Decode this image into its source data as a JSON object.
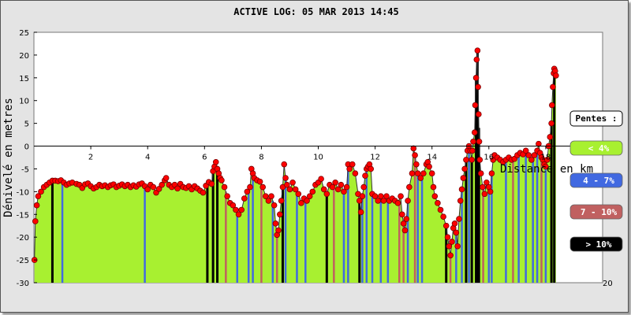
{
  "chart_data": {
    "type": "area",
    "title": "ACTIVE LOG: 05 MAR 2013 14:45",
    "xlabel": "Distance en km",
    "ylabel": "Dénivelé en metres",
    "xlim": [
      0,
      20
    ],
    "ylim": [
      -30,
      25
    ],
    "x_ticks": [
      2,
      4,
      6,
      8,
      10,
      12,
      14,
      16,
      18
    ],
    "y_ticks": [
      25,
      20,
      15,
      10,
      5,
      0,
      -5,
      -10,
      -15,
      -20,
      -25,
      -30
    ],
    "x_tick_labels": [
      "2",
      "4",
      "6",
      "8",
      "10",
      "12",
      "14",
      "16",
      "18"
    ],
    "y_tick_labels": [
      "25",
      "20",
      "15",
      "10",
      "5",
      "0",
      "-5",
      "-10",
      "-15",
      "-20",
      "-25",
      "-30"
    ],
    "x_end_label": "20",
    "grid": false,
    "legend_position": "right",
    "legend": {
      "title": "Pentes :",
      "items": [
        {
          "label": "< 4%",
          "color": "#a8f030",
          "text_color": "#ffffff"
        },
        {
          "label": "4 - 7%",
          "color": "#4169e1",
          "text_color": "#ffffff"
        },
        {
          "label": "7 - 10%",
          "color": "#c06060",
          "text_color": "#ffffff"
        },
        {
          "label": "> 10%",
          "color": "#000000",
          "text_color": "#ffffff"
        }
      ]
    },
    "colors": {
      "fill": "#a8f030",
      "point": "#ff0000",
      "slope_4_7": "#4169e1",
      "slope_7_10": "#c06060",
      "slope_gt10": "#000000"
    },
    "profile": [
      {
        "x": 0.02,
        "y": -25
      },
      {
        "x": 0.05,
        "y": -16.5
      },
      {
        "x": 0.1,
        "y": -13
      },
      {
        "x": 0.15,
        "y": -11
      },
      {
        "x": 0.25,
        "y": -10
      },
      {
        "x": 0.35,
        "y": -9
      },
      {
        "x": 0.45,
        "y": -8.5
      },
      {
        "x": 0.55,
        "y": -8
      },
      {
        "x": 0.65,
        "y": -7.6
      },
      {
        "x": 0.75,
        "y": -7.6
      },
      {
        "x": 0.85,
        "y": -7.7
      },
      {
        "x": 0.95,
        "y": -7.5
      },
      {
        "x": 1.05,
        "y": -8
      },
      {
        "x": 1.15,
        "y": -8.5
      },
      {
        "x": 1.25,
        "y": -8.2
      },
      {
        "x": 1.35,
        "y": -8
      },
      {
        "x": 1.5,
        "y": -8.3
      },
      {
        "x": 1.6,
        "y": -8.5
      },
      {
        "x": 1.7,
        "y": -9.2
      },
      {
        "x": 1.8,
        "y": -8.4
      },
      {
        "x": 1.9,
        "y": -8.2
      },
      {
        "x": 2.0,
        "y": -8.8
      },
      {
        "x": 2.1,
        "y": -9.3
      },
      {
        "x": 2.2,
        "y": -9.0
      },
      {
        "x": 2.3,
        "y": -8.5
      },
      {
        "x": 2.4,
        "y": -8.8
      },
      {
        "x": 2.5,
        "y": -8.6
      },
      {
        "x": 2.6,
        "y": -9.0
      },
      {
        "x": 2.7,
        "y": -8.6
      },
      {
        "x": 2.8,
        "y": -8.4
      },
      {
        "x": 2.9,
        "y": -9.0
      },
      {
        "x": 3.0,
        "y": -8.7
      },
      {
        "x": 3.1,
        "y": -8.4
      },
      {
        "x": 3.2,
        "y": -8.8
      },
      {
        "x": 3.3,
        "y": -8.5
      },
      {
        "x": 3.4,
        "y": -9.0
      },
      {
        "x": 3.5,
        "y": -8.6
      },
      {
        "x": 3.6,
        "y": -8.9
      },
      {
        "x": 3.7,
        "y": -8.4
      },
      {
        "x": 3.8,
        "y": -8.2
      },
      {
        "x": 3.9,
        "y": -8.8
      },
      {
        "x": 4.0,
        "y": -9.5
      },
      {
        "x": 4.1,
        "y": -8.5
      },
      {
        "x": 4.2,
        "y": -9.0
      },
      {
        "x": 4.3,
        "y": -10.2
      },
      {
        "x": 4.4,
        "y": -9.4
      },
      {
        "x": 4.5,
        "y": -8.5
      },
      {
        "x": 4.6,
        "y": -7.5
      },
      {
        "x": 4.65,
        "y": -7.0
      },
      {
        "x": 4.75,
        "y": -8.5
      },
      {
        "x": 4.85,
        "y": -9.0
      },
      {
        "x": 4.95,
        "y": -8.5
      },
      {
        "x": 5.05,
        "y": -9.3
      },
      {
        "x": 5.15,
        "y": -8.3
      },
      {
        "x": 5.25,
        "y": -9.0
      },
      {
        "x": 5.35,
        "y": -9.2
      },
      {
        "x": 5.45,
        "y": -8.8
      },
      {
        "x": 5.55,
        "y": -9.5
      },
      {
        "x": 5.65,
        "y": -8.8
      },
      {
        "x": 5.75,
        "y": -9.3
      },
      {
        "x": 5.85,
        "y": -9.8
      },
      {
        "x": 5.95,
        "y": -10.2
      },
      {
        "x": 6.05,
        "y": -8.7
      },
      {
        "x": 6.15,
        "y": -7.9
      },
      {
        "x": 6.25,
        "y": -8.3
      },
      {
        "x": 6.3,
        "y": -5.5
      },
      {
        "x": 6.35,
        "y": -4.5
      },
      {
        "x": 6.4,
        "y": -3.5
      },
      {
        "x": 6.45,
        "y": -5.0
      },
      {
        "x": 6.5,
        "y": -6.0
      },
      {
        "x": 6.55,
        "y": -7.0
      },
      {
        "x": 6.6,
        "y": -7.5
      },
      {
        "x": 6.7,
        "y": -9.0
      },
      {
        "x": 6.8,
        "y": -11.0
      },
      {
        "x": 6.9,
        "y": -12.5
      },
      {
        "x": 7.0,
        "y": -13.0
      },
      {
        "x": 7.1,
        "y": -14.0
      },
      {
        "x": 7.2,
        "y": -15.0
      },
      {
        "x": 7.3,
        "y": -14.0
      },
      {
        "x": 7.4,
        "y": -11.5
      },
      {
        "x": 7.5,
        "y": -10.0
      },
      {
        "x": 7.6,
        "y": -9.0
      },
      {
        "x": 7.65,
        "y": -5.0
      },
      {
        "x": 7.7,
        "y": -6.0
      },
      {
        "x": 7.75,
        "y": -7.0
      },
      {
        "x": 7.85,
        "y": -7.5
      },
      {
        "x": 7.95,
        "y": -7.8
      },
      {
        "x": 8.05,
        "y": -9.0
      },
      {
        "x": 8.15,
        "y": -11.0
      },
      {
        "x": 8.25,
        "y": -12.0
      },
      {
        "x": 8.35,
        "y": -11.0
      },
      {
        "x": 8.45,
        "y": -13.0
      },
      {
        "x": 8.5,
        "y": -17.0
      },
      {
        "x": 8.55,
        "y": -19.5
      },
      {
        "x": 8.6,
        "y": -18.5
      },
      {
        "x": 8.65,
        "y": -15.0
      },
      {
        "x": 8.7,
        "y": -12.0
      },
      {
        "x": 8.75,
        "y": -9.0
      },
      {
        "x": 8.8,
        "y": -4.0
      },
      {
        "x": 8.85,
        "y": -7.0
      },
      {
        "x": 8.9,
        "y": -8.5
      },
      {
        "x": 9.0,
        "y": -9.5
      },
      {
        "x": 9.1,
        "y": -8.0
      },
      {
        "x": 9.2,
        "y": -9.5
      },
      {
        "x": 9.3,
        "y": -10.5
      },
      {
        "x": 9.4,
        "y": -12.5
      },
      {
        "x": 9.5,
        "y": -11.5
      },
      {
        "x": 9.6,
        "y": -12.0
      },
      {
        "x": 9.7,
        "y": -11.0
      },
      {
        "x": 9.8,
        "y": -10.0
      },
      {
        "x": 9.9,
        "y": -8.5
      },
      {
        "x": 10.0,
        "y": -8.0
      },
      {
        "x": 10.1,
        "y": -7.2
      },
      {
        "x": 10.2,
        "y": -9.5
      },
      {
        "x": 10.3,
        "y": -10.5
      },
      {
        "x": 10.4,
        "y": -8.5
      },
      {
        "x": 10.5,
        "y": -9.0
      },
      {
        "x": 10.6,
        "y": -8.0
      },
      {
        "x": 10.7,
        "y": -9.5
      },
      {
        "x": 10.8,
        "y": -8.5
      },
      {
        "x": 10.9,
        "y": -10.0
      },
      {
        "x": 11.0,
        "y": -9.0
      },
      {
        "x": 11.05,
        "y": -4.0
      },
      {
        "x": 11.1,
        "y": -5.0
      },
      {
        "x": 11.2,
        "y": -4.0
      },
      {
        "x": 11.3,
        "y": -6.0
      },
      {
        "x": 11.4,
        "y": -10.5
      },
      {
        "x": 11.45,
        "y": -12.0
      },
      {
        "x": 11.5,
        "y": -14.5
      },
      {
        "x": 11.55,
        "y": -11.0
      },
      {
        "x": 11.6,
        "y": -9.0
      },
      {
        "x": 11.65,
        "y": -6.5
      },
      {
        "x": 11.7,
        "y": -5.0
      },
      {
        "x": 11.75,
        "y": -4.5
      },
      {
        "x": 11.8,
        "y": -4.0
      },
      {
        "x": 11.85,
        "y": -5.0
      },
      {
        "x": 11.9,
        "y": -10.5
      },
      {
        "x": 12.0,
        "y": -11.0
      },
      {
        "x": 12.1,
        "y": -12.0
      },
      {
        "x": 12.2,
        "y": -11.0
      },
      {
        "x": 12.3,
        "y": -12.0
      },
      {
        "x": 12.4,
        "y": -11.0
      },
      {
        "x": 12.5,
        "y": -12.0
      },
      {
        "x": 12.6,
        "y": -11.5
      },
      {
        "x": 12.7,
        "y": -12.0
      },
      {
        "x": 12.8,
        "y": -12.5
      },
      {
        "x": 12.9,
        "y": -11.0
      },
      {
        "x": 12.95,
        "y": -15.0
      },
      {
        "x": 13.0,
        "y": -17.0
      },
      {
        "x": 13.05,
        "y": -18.5
      },
      {
        "x": 13.1,
        "y": -16.0
      },
      {
        "x": 13.15,
        "y": -12.0
      },
      {
        "x": 13.2,
        "y": -9.0
      },
      {
        "x": 13.3,
        "y": -6.0
      },
      {
        "x": 13.35,
        "y": -0.5
      },
      {
        "x": 13.4,
        "y": -2.0
      },
      {
        "x": 13.45,
        "y": -4.0
      },
      {
        "x": 13.5,
        "y": -6.0
      },
      {
        "x": 13.6,
        "y": -7.0
      },
      {
        "x": 13.7,
        "y": -6.0
      },
      {
        "x": 13.8,
        "y": -4.0
      },
      {
        "x": 13.85,
        "y": -3.5
      },
      {
        "x": 13.9,
        "y": -4.5
      },
      {
        "x": 14.0,
        "y": -6.0
      },
      {
        "x": 14.05,
        "y": -9.0
      },
      {
        "x": 14.1,
        "y": -11.0
      },
      {
        "x": 14.2,
        "y": -12.5
      },
      {
        "x": 14.3,
        "y": -14.0
      },
      {
        "x": 14.4,
        "y": -15.5
      },
      {
        "x": 14.5,
        "y": -17.5
      },
      {
        "x": 14.55,
        "y": -20.0
      },
      {
        "x": 14.6,
        "y": -22.0
      },
      {
        "x": 14.65,
        "y": -24.0
      },
      {
        "x": 14.7,
        "y": -21.0
      },
      {
        "x": 14.75,
        "y": -18.0
      },
      {
        "x": 14.8,
        "y": -17.0
      },
      {
        "x": 14.85,
        "y": -19.0
      },
      {
        "x": 14.9,
        "y": -22.0
      },
      {
        "x": 14.95,
        "y": -16.0
      },
      {
        "x": 15.0,
        "y": -12.0
      },
      {
        "x": 15.05,
        "y": -9.5
      },
      {
        "x": 15.1,
        "y": -7.0
      },
      {
        "x": 15.15,
        "y": -5.0
      },
      {
        "x": 15.2,
        "y": -3.0
      },
      {
        "x": 15.25,
        "y": -1.0
      },
      {
        "x": 15.3,
        "y": 0.0
      },
      {
        "x": 15.35,
        "y": -1.0
      },
      {
        "x": 15.4,
        "y": -3.0
      },
      {
        "x": 15.42,
        "y": -1.0
      },
      {
        "x": 15.45,
        "y": 1.0
      },
      {
        "x": 15.5,
        "y": 3.0
      },
      {
        "x": 15.52,
        "y": 9.0
      },
      {
        "x": 15.55,
        "y": 15.0
      },
      {
        "x": 15.57,
        "y": 19.0
      },
      {
        "x": 15.6,
        "y": 21.0
      },
      {
        "x": 15.62,
        "y": 13.0
      },
      {
        "x": 15.64,
        "y": 7.0
      },
      {
        "x": 15.66,
        "y": 1.0
      },
      {
        "x": 15.68,
        "y": -3.0
      },
      {
        "x": 15.72,
        "y": -6.0
      },
      {
        "x": 15.78,
        "y": -9.0
      },
      {
        "x": 15.85,
        "y": -10.5
      },
      {
        "x": 15.92,
        "y": -8.0
      },
      {
        "x": 16.0,
        "y": -9.0
      },
      {
        "x": 16.05,
        "y": -10.0
      },
      {
        "x": 16.1,
        "y": -6.0
      },
      {
        "x": 16.15,
        "y": -3.0
      },
      {
        "x": 16.2,
        "y": -2.0
      },
      {
        "x": 16.3,
        "y": -2.5
      },
      {
        "x": 16.4,
        "y": -3.0
      },
      {
        "x": 16.5,
        "y": -3.5
      },
      {
        "x": 16.6,
        "y": -3.0
      },
      {
        "x": 16.7,
        "y": -2.5
      },
      {
        "x": 16.8,
        "y": -3.0
      },
      {
        "x": 16.9,
        "y": -2.8
      },
      {
        "x": 17.0,
        "y": -2.0
      },
      {
        "x": 17.1,
        "y": -1.5
      },
      {
        "x": 17.2,
        "y": -1.8
      },
      {
        "x": 17.3,
        "y": -1.0
      },
      {
        "x": 17.4,
        "y": -2.0
      },
      {
        "x": 17.5,
        "y": -3.0
      },
      {
        "x": 17.6,
        "y": -2.0
      },
      {
        "x": 17.7,
        "y": -1.0
      },
      {
        "x": 17.75,
        "y": 0.5
      },
      {
        "x": 17.8,
        "y": -1.5
      },
      {
        "x": 17.85,
        "y": -2.5
      },
      {
        "x": 17.9,
        "y": -3.0
      },
      {
        "x": 17.95,
        "y": -4.0
      },
      {
        "x": 18.0,
        "y": -4.5
      },
      {
        "x": 18.05,
        "y": -3.0
      },
      {
        "x": 18.1,
        "y": 0.0
      },
      {
        "x": 18.15,
        "y": 2.0
      },
      {
        "x": 18.2,
        "y": 5.0
      },
      {
        "x": 18.22,
        "y": 9.0
      },
      {
        "x": 18.25,
        "y": 13.0
      },
      {
        "x": 18.28,
        "y": 16.0
      },
      {
        "x": 18.3,
        "y": 17.0
      },
      {
        "x": 18.33,
        "y": 16.5
      },
      {
        "x": 18.36,
        "y": 15.5
      }
    ],
    "slope_bands": [
      {
        "x": 0.65,
        "class": ">10%"
      },
      {
        "x": 1.0,
        "class": "4-7%"
      },
      {
        "x": 3.9,
        "class": "4-7%"
      },
      {
        "x": 6.1,
        "class": ">10%"
      },
      {
        "x": 6.3,
        "class": ">10%"
      },
      {
        "x": 6.45,
        "class": ">10%"
      },
      {
        "x": 6.75,
        "class": "7-10%"
      },
      {
        "x": 7.15,
        "class": "4-7%"
      },
      {
        "x": 7.55,
        "class": "4-7%"
      },
      {
        "x": 7.7,
        "class": "4-7%"
      },
      {
        "x": 8.0,
        "class": "7-10%"
      },
      {
        "x": 8.4,
        "class": "4-7%"
      },
      {
        "x": 8.55,
        "class": "7-10%"
      },
      {
        "x": 8.75,
        "class": ">10%"
      },
      {
        "x": 8.85,
        "class": "4-7%"
      },
      {
        "x": 9.25,
        "class": "4-7%"
      },
      {
        "x": 9.55,
        "class": "4-7%"
      },
      {
        "x": 10.3,
        "class": ">10%"
      },
      {
        "x": 10.55,
        "class": "7-10%"
      },
      {
        "x": 10.9,
        "class": "4-7%"
      },
      {
        "x": 11.05,
        "class": "4-7%"
      },
      {
        "x": 11.45,
        "class": ">10%"
      },
      {
        "x": 11.55,
        "class": "4-7%"
      },
      {
        "x": 11.7,
        "class": "4-7%"
      },
      {
        "x": 11.9,
        "class": "4-7%"
      },
      {
        "x": 12.2,
        "class": "4-7%"
      },
      {
        "x": 12.45,
        "class": "4-7%"
      },
      {
        "x": 12.85,
        "class": "7-10%"
      },
      {
        "x": 13.0,
        "class": "7-10%"
      },
      {
        "x": 13.15,
        "class": "4-7%"
      },
      {
        "x": 13.4,
        "class": "7-10%"
      },
      {
        "x": 13.5,
        "class": "4-7%"
      },
      {
        "x": 13.65,
        "class": "4-7%"
      },
      {
        "x": 14.5,
        "class": ">10%"
      },
      {
        "x": 14.65,
        "class": "7-10%"
      },
      {
        "x": 14.85,
        "class": "4-7%"
      },
      {
        "x": 15.05,
        "class": "4-7%"
      },
      {
        "x": 15.2,
        "class": ">10%"
      },
      {
        "x": 15.3,
        "class": "4-7%"
      },
      {
        "x": 15.4,
        "class": ">10%"
      },
      {
        "x": 15.55,
        "class": ">10%"
      },
      {
        "x": 15.6,
        "class": ">10%"
      },
      {
        "x": 15.65,
        "class": ">10%"
      },
      {
        "x": 15.8,
        "class": "7-10%"
      },
      {
        "x": 16.0,
        "class": "4-7%"
      },
      {
        "x": 16.1,
        "class": "4-7%"
      },
      {
        "x": 16.6,
        "class": "4-7%"
      },
      {
        "x": 16.85,
        "class": "7-10%"
      },
      {
        "x": 17.05,
        "class": "4-7%"
      },
      {
        "x": 17.3,
        "class": "4-7%"
      },
      {
        "x": 17.55,
        "class": "4-7%"
      },
      {
        "x": 17.7,
        "class": "4-7%"
      },
      {
        "x": 17.85,
        "class": "7-10%"
      },
      {
        "x": 18.0,
        "class": "4-7%"
      },
      {
        "x": 18.2,
        "class": ">10%"
      },
      {
        "x": 18.3,
        "class": ">10%"
      }
    ]
  }
}
